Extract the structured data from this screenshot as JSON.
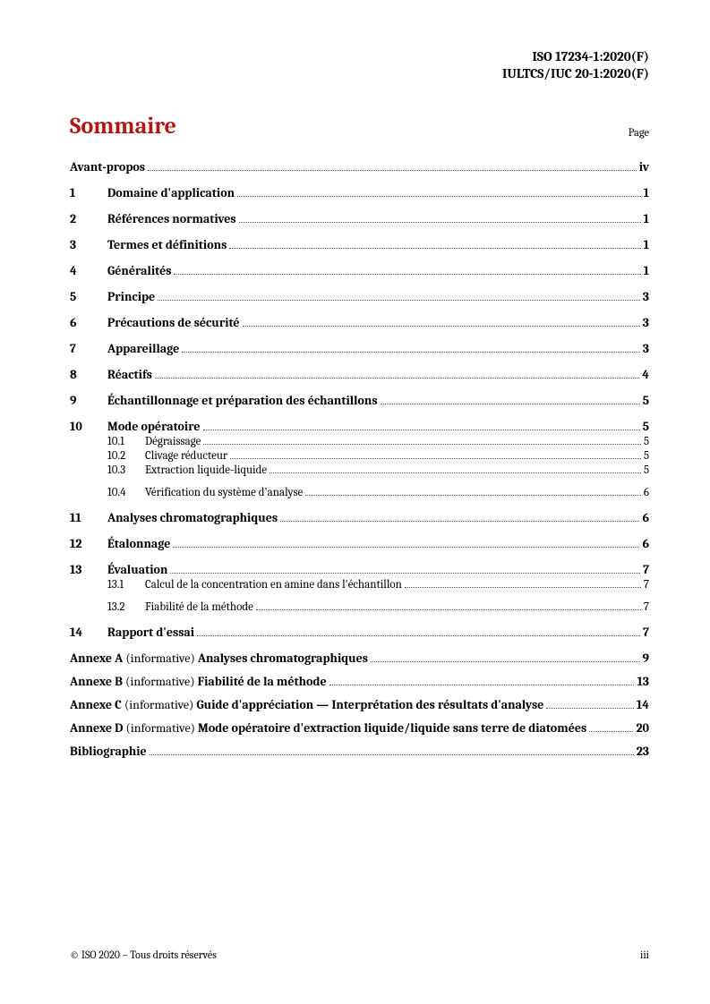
{
  "header": {
    "line1": "ISO 17234-1:2020(F)",
    "line2": "IULTCS/IUC 20-1:2020(F)"
  },
  "title": "Sommaire",
  "page_label": "Page",
  "toc": {
    "avant_propos": {
      "label": "Avant-propos",
      "page": "iv"
    },
    "sections": [
      {
        "num": "1",
        "title": "Domaine d'application",
        "page": "1"
      },
      {
        "num": "2",
        "title": "Références normatives",
        "page": "1"
      },
      {
        "num": "3",
        "title": "Termes et définitions",
        "page": "1"
      },
      {
        "num": "4",
        "title": "Généralités",
        "page": "1"
      },
      {
        "num": "5",
        "title": "Principe",
        "page": "3"
      },
      {
        "num": "6",
        "title": "Précautions de sécurité",
        "page": "3"
      },
      {
        "num": "7",
        "title": "Appareillage",
        "page": "3"
      },
      {
        "num": "8",
        "title": "Réactifs",
        "page": "4"
      },
      {
        "num": "9",
        "title": "Échantillonnage et préparation des échantillons",
        "page": "5"
      },
      {
        "num": "10",
        "title": "Mode opératoire",
        "page": "5",
        "subs": [
          {
            "num": "10.1",
            "title": "Dégraissage",
            "page": "5"
          },
          {
            "num": "10.2",
            "title": "Clivage réducteur",
            "page": "5"
          },
          {
            "num": "10.3",
            "title": "Extraction liquide-liquide",
            "page": "5"
          },
          {
            "num": "10.4",
            "title": "Vérification du système d'analyse",
            "page": "6"
          }
        ]
      },
      {
        "num": "11",
        "title": "Analyses chromatographiques",
        "page": "6"
      },
      {
        "num": "12",
        "title": "Étalonnage",
        "page": "6"
      },
      {
        "num": "13",
        "title": "Évaluation",
        "page": "7",
        "subs": [
          {
            "num": "13.1",
            "title": "Calcul de la concentration en amine dans l'échantillon",
            "page": "7"
          },
          {
            "num": "13.2",
            "title": "Fiabilité de la méthode",
            "page": "7"
          }
        ]
      },
      {
        "num": "14",
        "title": "Rapport d'essai",
        "page": "7"
      }
    ],
    "annexes": [
      {
        "label": "Annexe A",
        "note": "(informative)",
        "title": "Analyses chromatographiques",
        "page": "9"
      },
      {
        "label": "Annexe B",
        "note": "(informative)",
        "title": "Fiabilité de la méthode",
        "page": "13"
      },
      {
        "label": "Annexe C",
        "note": "(informative)",
        "title": "Guide d'appréciation — Interprétation des résultats d'analyse",
        "page": "14"
      },
      {
        "label": "Annexe D",
        "note": "(informative)",
        "title": "Mode opératoire d'extraction liquide/liquide sans terre de diatomées",
        "page": "20"
      }
    ],
    "biblio": {
      "label": "Bibliographie",
      "page": "23"
    }
  },
  "footer": {
    "copyright": "© ISO 2020 – Tous droits réservés",
    "pagenum": "iii"
  }
}
